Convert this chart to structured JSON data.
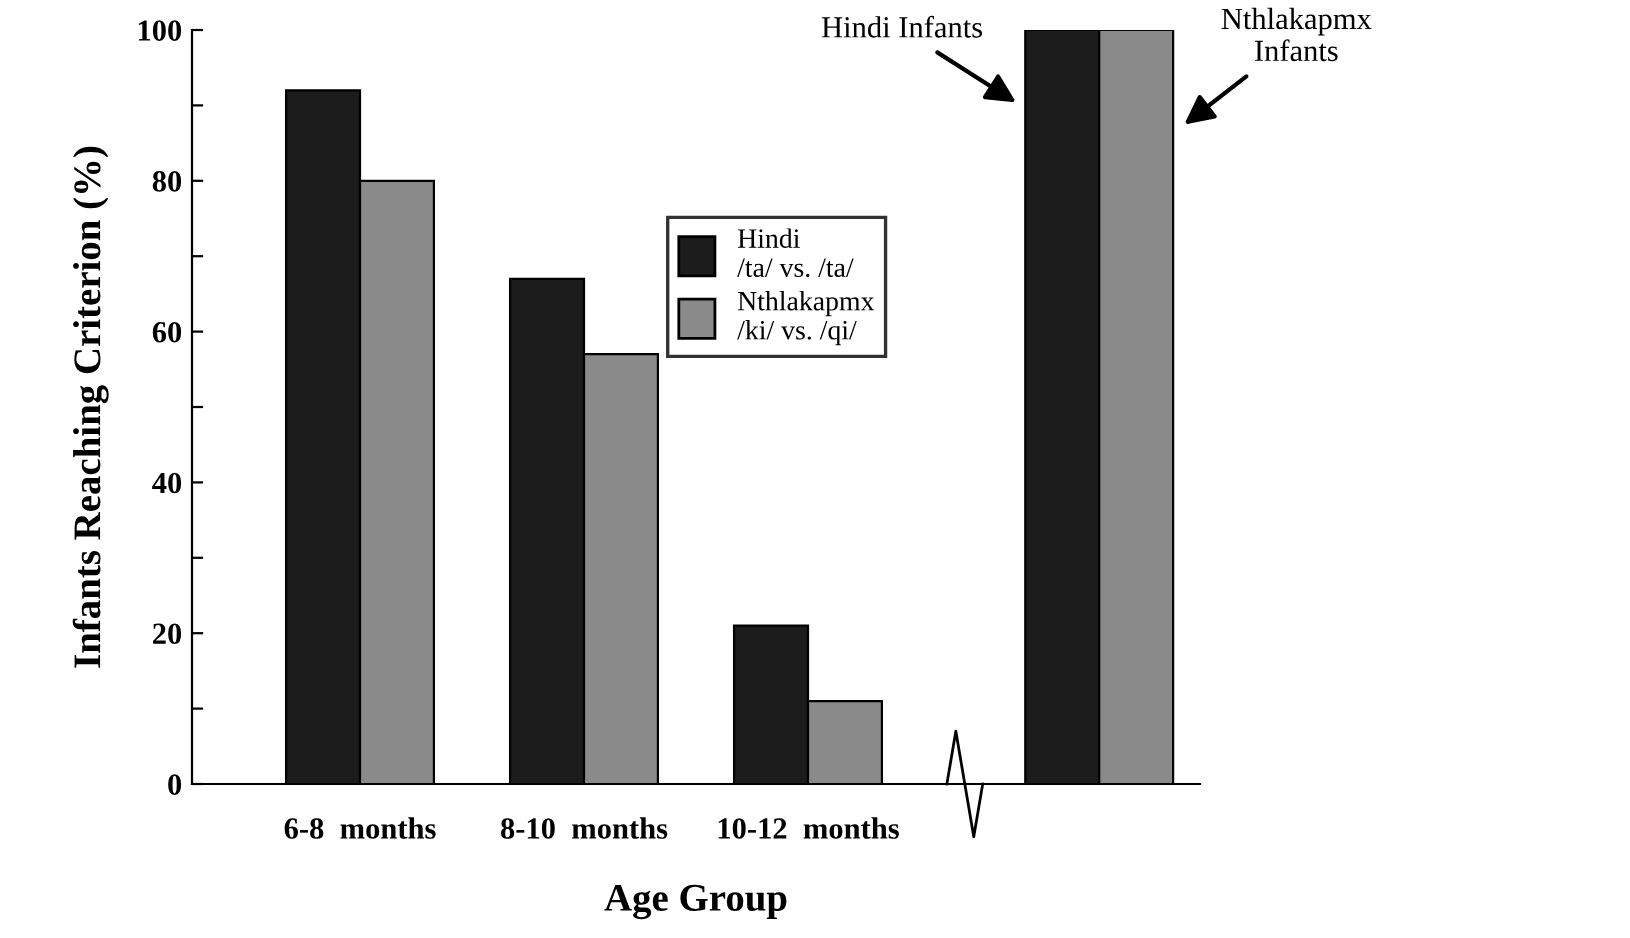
{
  "chart_data": {
    "type": "bar",
    "xlabel": "Age Group",
    "ylabel": "Infants Reaching Criterion (%)",
    "categories": [
      "6-8  months",
      "8-10  months",
      "10-12  months",
      null
    ],
    "series": [
      {
        "name": "Hindi\n/ta/ vs. /ta/",
        "color": "#1c1c1c",
        "values": [
          92,
          67,
          21,
          100
        ]
      },
      {
        "name": "Nthlakapmx\n/ki/ vs. /qi/",
        "color": "#8a8a8a",
        "values": [
          80,
          57,
          11,
          100
        ]
      }
    ],
    "ylim": [
      0,
      100
    ],
    "yticks": [
      0,
      {
        "value": 10,
        "label": null
      },
      20,
      {
        "value": 30,
        "label": null
      },
      40,
      {
        "value": 50,
        "label": null
      },
      60,
      {
        "value": 70,
        "label": null
      },
      80,
      {
        "value": 90,
        "label": null
      },
      100
    ],
    "annotations": [
      "Hindi Infants",
      "Nthlakapmx\nInfants"
    ],
    "legend": "top",
    "grid": false
  }
}
